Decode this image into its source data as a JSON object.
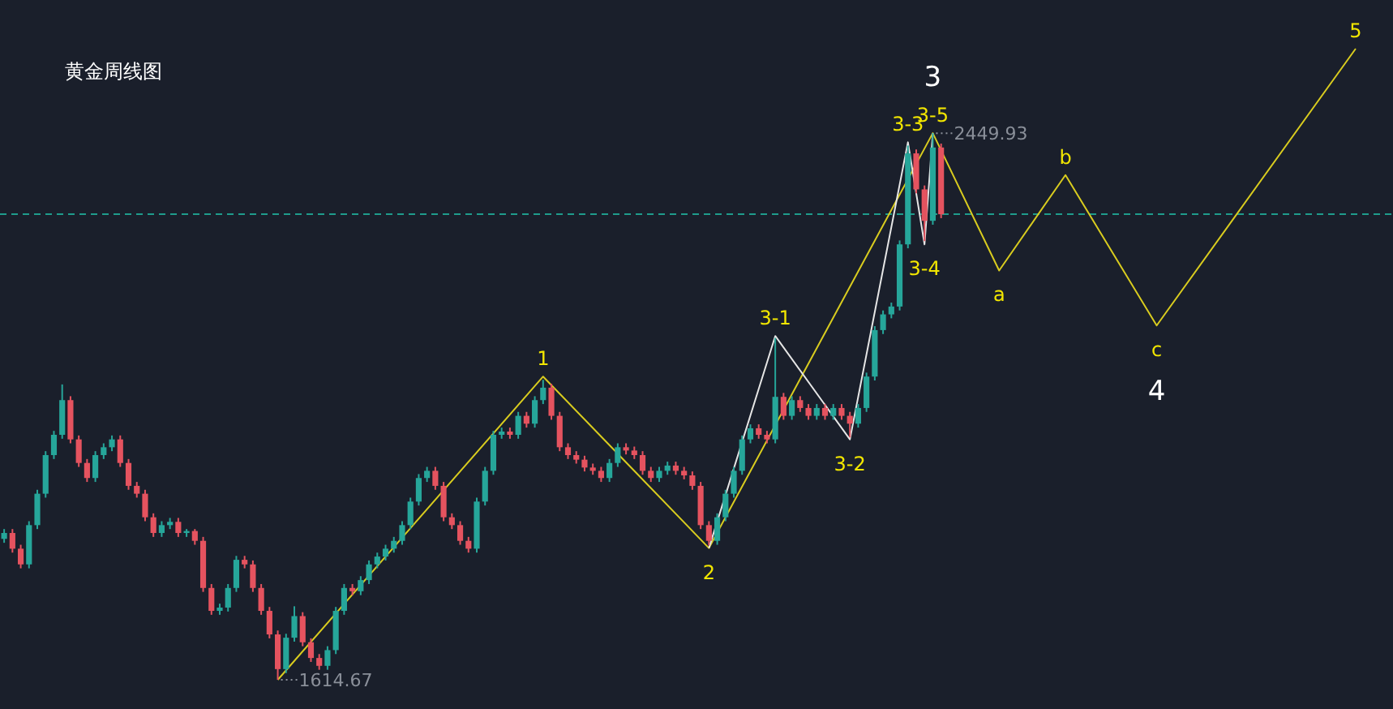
{
  "chart_data": {
    "type": "candlestick",
    "title": "黄金周线图",
    "grid": false,
    "categories": [
      null,
      null,
      null,
      null,
      null,
      null,
      null,
      null,
      null,
      null,
      null,
      null,
      null,
      null,
      null,
      null,
      null,
      null,
      null,
      null,
      null,
      null,
      null,
      null,
      null,
      null,
      null,
      null,
      null,
      null,
      null,
      null,
      null,
      null,
      null,
      null,
      null,
      null,
      null,
      null,
      null,
      null,
      null,
      null,
      null,
      null,
      null,
      null,
      null,
      null,
      null,
      null,
      null,
      null,
      null,
      null,
      null,
      null,
      null,
      null,
      null,
      null,
      null,
      null,
      null,
      null,
      null,
      null,
      null,
      null,
      null,
      null,
      null,
      null,
      null,
      null,
      null,
      null,
      null,
      null,
      null,
      null,
      null,
      null,
      null,
      null,
      null,
      null,
      null,
      null,
      null,
      null,
      null,
      null,
      null,
      null,
      null,
      null,
      null,
      null,
      null,
      null,
      null,
      null,
      null,
      null,
      null,
      null,
      null,
      null,
      null,
      null,
      null,
      null,
      null,
      null,
      null,
      null,
      null,
      null,
      null,
      null,
      null,
      null,
      null,
      null,
      null,
      null,
      null,
      null,
      null,
      null,
      null,
      null,
      null,
      null,
      null,
      null,
      null,
      null,
      null,
      null,
      null,
      null,
      null,
      null,
      null,
      null,
      null,
      null,
      null,
      null,
      null,
      null,
      null,
      null,
      null,
      null,
      null,
      null,
      null,
      null,
      null,
      null,
      null,
      null,
      null,
      null
    ],
    "ohlc": [
      [
        1830,
        1845,
        1824,
        1839
      ],
      [
        1839,
        1845,
        1809,
        1815
      ],
      [
        1815,
        1821,
        1785,
        1791
      ],
      [
        1791,
        1857,
        1785,
        1851
      ],
      [
        1851,
        1905,
        1845,
        1899
      ],
      [
        1899,
        1964,
        1893,
        1958
      ],
      [
        1958,
        1995,
        1952,
        1989
      ],
      [
        1989,
        2066,
        1983,
        2042
      ],
      [
        2042,
        2048,
        1976,
        1982
      ],
      [
        1982,
        1988,
        1940,
        1946
      ],
      [
        1946,
        1952,
        1917,
        1923
      ],
      [
        1923,
        1964,
        1917,
        1958
      ],
      [
        1958,
        1976,
        1952,
        1970
      ],
      [
        1970,
        1988,
        1964,
        1982
      ],
      [
        1982,
        1988,
        1940,
        1946
      ],
      [
        1946,
        1952,
        1905,
        1911
      ],
      [
        1911,
        1917,
        1893,
        1899
      ],
      [
        1899,
        1905,
        1857,
        1863
      ],
      [
        1863,
        1869,
        1833,
        1839
      ],
      [
        1839,
        1857,
        1833,
        1851
      ],
      [
        1851,
        1862,
        1845,
        1856
      ],
      [
        1856,
        1862,
        1833,
        1839
      ],
      [
        1839,
        1845,
        1833,
        1842
      ],
      [
        1842,
        1845,
        1821,
        1827
      ],
      [
        1827,
        1833,
        1749,
        1755
      ],
      [
        1755,
        1761,
        1714,
        1720
      ],
      [
        1720,
        1731,
        1714,
        1725
      ],
      [
        1725,
        1761,
        1719,
        1755
      ],
      [
        1755,
        1804,
        1749,
        1798
      ],
      [
        1798,
        1804,
        1785,
        1791
      ],
      [
        1791,
        1797,
        1749,
        1755
      ],
      [
        1755,
        1761,
        1714,
        1720
      ],
      [
        1720,
        1726,
        1678,
        1684
      ],
      [
        1684,
        1690,
        1614.67,
        1631
      ],
      [
        1631,
        1685,
        1625,
        1679
      ],
      [
        1679,
        1727,
        1673,
        1712
      ],
      [
        1712,
        1718,
        1666,
        1672
      ],
      [
        1672,
        1678,
        1642,
        1648
      ],
      [
        1648,
        1654,
        1630,
        1636
      ],
      [
        1636,
        1666,
        1630,
        1660
      ],
      [
        1660,
        1726,
        1654,
        1720
      ],
      [
        1720,
        1761,
        1714,
        1755
      ],
      [
        1755,
        1761,
        1744,
        1750
      ],
      [
        1750,
        1773,
        1744,
        1767
      ],
      [
        1767,
        1797,
        1761,
        1791
      ],
      [
        1791,
        1809,
        1785,
        1803
      ],
      [
        1803,
        1821,
        1797,
        1815
      ],
      [
        1815,
        1833,
        1809,
        1827
      ],
      [
        1827,
        1857,
        1821,
        1851
      ],
      [
        1851,
        1893,
        1845,
        1887
      ],
      [
        1887,
        1929,
        1881,
        1923
      ],
      [
        1923,
        1940,
        1917,
        1934
      ],
      [
        1934,
        1940,
        1905,
        1911
      ],
      [
        1911,
        1917,
        1857,
        1863
      ],
      [
        1863,
        1869,
        1845,
        1851
      ],
      [
        1851,
        1857,
        1821,
        1827
      ],
      [
        1827,
        1833,
        1809,
        1815
      ],
      [
        1815,
        1893,
        1809,
        1887
      ],
      [
        1887,
        1940,
        1881,
        1934
      ],
      [
        1934,
        1995,
        1928,
        1989
      ],
      [
        1989,
        2000,
        1983,
        1994
      ],
      [
        1994,
        2000,
        1983,
        1989
      ],
      [
        1989,
        2024,
        1983,
        2018
      ],
      [
        2018,
        2024,
        2000,
        2006
      ],
      [
        2006,
        2048,
        2000,
        2042
      ],
      [
        2042,
        2073,
        2036,
        2061
      ],
      [
        2061,
        2067,
        2012,
        2018
      ],
      [
        2018,
        2024,
        1964,
        1970
      ],
      [
        1970,
        1976,
        1952,
        1958
      ],
      [
        1958,
        1964,
        1945,
        1951
      ],
      [
        1951,
        1957,
        1933,
        1939
      ],
      [
        1939,
        1945,
        1928,
        1934
      ],
      [
        1934,
        1940,
        1917,
        1923
      ],
      [
        1923,
        1952,
        1917,
        1946
      ],
      [
        1946,
        1976,
        1940,
        1970
      ],
      [
        1970,
        1976,
        1959,
        1965
      ],
      [
        1965,
        1971,
        1952,
        1958
      ],
      [
        1958,
        1964,
        1928,
        1934
      ],
      [
        1934,
        1940,
        1917,
        1923
      ],
      [
        1923,
        1940,
        1917,
        1934
      ],
      [
        1934,
        1948,
        1928,
        1942
      ],
      [
        1942,
        1948,
        1928,
        1934
      ],
      [
        1934,
        1940,
        1921,
        1927
      ],
      [
        1927,
        1933,
        1905,
        1911
      ],
      [
        1911,
        1917,
        1845,
        1851
      ],
      [
        1851,
        1857,
        1820,
        1827
      ],
      [
        1827,
        1869,
        1821,
        1863
      ],
      [
        1863,
        1905,
        1857,
        1899
      ],
      [
        1899,
        1940,
        1893,
        1934
      ],
      [
        1934,
        1988,
        1928,
        1982
      ],
      [
        1982,
        2005,
        1976,
        1999
      ],
      [
        1999,
        2005,
        1983,
        1989
      ],
      [
        1989,
        1995,
        1976,
        1982
      ],
      [
        1982,
        2137,
        1976,
        2047
      ],
      [
        2047,
        2053,
        2012,
        2018
      ],
      [
        2018,
        2048,
        2012,
        2042
      ],
      [
        2042,
        2048,
        2024,
        2030
      ],
      [
        2030,
        2036,
        2012,
        2018
      ],
      [
        2018,
        2036,
        2012,
        2030
      ],
      [
        2030,
        2036,
        2012,
        2018
      ],
      [
        2018,
        2036,
        2012,
        2030
      ],
      [
        2030,
        2036,
        2012,
        2018
      ],
      [
        2018,
        2024,
        1985,
        2006
      ],
      [
        2006,
        2036,
        2000,
        2030
      ],
      [
        2030,
        2084,
        2024,
        2078
      ],
      [
        2078,
        2155,
        2072,
        2149
      ],
      [
        2149,
        2179,
        2143,
        2173
      ],
      [
        2173,
        2191,
        2167,
        2185
      ],
      [
        2185,
        2286,
        2179,
        2280
      ],
      [
        2280,
        2431,
        2274,
        2419
      ],
      [
        2419,
        2425,
        2358,
        2364
      ],
      [
        2364,
        2370,
        2285,
        2316
      ],
      [
        2316,
        2449.93,
        2310,
        2428
      ],
      [
        2428,
        2434,
        2320,
        2326
      ],
      null,
      null,
      null,
      null,
      null,
      null,
      null,
      null,
      null,
      null,
      null,
      null,
      null,
      null,
      null,
      null,
      null,
      null,
      null,
      null,
      null,
      null,
      null,
      null,
      null,
      null,
      null,
      null,
      null,
      null,
      null,
      null,
      null,
      null,
      null,
      null,
      null,
      null,
      null,
      null,
      null,
      null,
      null,
      null,
      null,
      null,
      null,
      null,
      null,
      null,
      null,
      null,
      null,
      null
    ],
    "series": [
      {
        "type": "line",
        "color": "#d9cc1f",
        "values": [
          null,
          null,
          null,
          null,
          null,
          null,
          null,
          null,
          null,
          null,
          null,
          null,
          null,
          null,
          null,
          null,
          null,
          null,
          null,
          null,
          null,
          null,
          null,
          null,
          null,
          null,
          null,
          null,
          null,
          null,
          null,
          null,
          null,
          1614.67,
          null,
          null,
          null,
          null,
          null,
          null,
          null,
          null,
          null,
          null,
          null,
          null,
          null,
          null,
          null,
          null,
          null,
          null,
          null,
          null,
          null,
          null,
          null,
          null,
          null,
          null,
          null,
          null,
          null,
          null,
          null,
          2078,
          null,
          null,
          null,
          null,
          null,
          null,
          null,
          null,
          null,
          null,
          null,
          null,
          null,
          null,
          null,
          null,
          null,
          null,
          null,
          1816,
          null,
          null,
          null,
          null,
          null,
          null,
          null,
          null,
          null,
          null,
          null,
          null,
          null,
          null,
          null,
          null,
          null,
          null,
          null,
          null,
          null,
          null,
          null,
          null,
          null,
          null,
          2449.93,
          null,
          null,
          null,
          null,
          null,
          null,
          null,
          2240,
          null,
          null,
          null,
          null,
          null,
          null,
          null,
          2386,
          null,
          null,
          null,
          null,
          null,
          null,
          null,
          null,
          null,
          null,
          2156,
          null,
          null,
          null,
          null,
          null,
          null,
          null,
          null,
          null,
          null,
          null,
          null,
          null,
          null,
          null,
          null,
          null,
          null,
          null,
          null,
          null,
          null,
          null,
          2579,
          null,
          null,
          null,
          null
        ]
      },
      {
        "type": "line",
        "color": "#e6e6e6",
        "values": [
          null,
          null,
          null,
          null,
          null,
          null,
          null,
          null,
          null,
          null,
          null,
          null,
          null,
          null,
          null,
          null,
          null,
          null,
          null,
          null,
          null,
          null,
          null,
          null,
          null,
          null,
          null,
          null,
          null,
          null,
          null,
          null,
          null,
          null,
          null,
          null,
          null,
          null,
          null,
          null,
          null,
          null,
          null,
          null,
          null,
          null,
          null,
          null,
          null,
          null,
          null,
          null,
          null,
          null,
          null,
          null,
          null,
          null,
          null,
          null,
          null,
          null,
          null,
          null,
          null,
          null,
          null,
          null,
          null,
          null,
          null,
          null,
          null,
          null,
          null,
          null,
          null,
          null,
          null,
          null,
          null,
          null,
          null,
          null,
          null,
          1816,
          null,
          null,
          null,
          null,
          null,
          null,
          null,
          2140,
          null,
          null,
          null,
          null,
          null,
          null,
          null,
          null,
          1982,
          null,
          null,
          null,
          null,
          null,
          null,
          2436,
          null,
          2280,
          2449.93,
          null,
          null,
          null,
          null,
          null,
          null,
          null,
          null,
          null,
          null,
          null,
          null,
          null,
          null,
          null,
          null,
          null,
          null,
          null,
          null,
          null,
          null,
          null,
          null,
          null,
          null,
          null,
          null,
          null,
          null,
          null,
          null,
          null,
          null,
          null,
          null,
          null,
          null,
          null,
          null,
          null,
          null,
          null,
          null,
          null,
          null,
          null,
          null,
          null,
          null,
          null,
          null,
          null,
          null,
          null
        ]
      }
    ],
    "ref_lines": [
      {
        "axis": "y",
        "value": 2326,
        "color": "#1f9c8c",
        "line_style": "dashed"
      }
    ],
    "annotations": [
      "1614.67",
      "2449.93",
      {
        "text": "3-1",
        "y": 2140
      },
      {
        "text": "3-2",
        "y": 1982
      },
      {
        "text": "3-3",
        "y": 2436
      },
      {
        "text": "3-4",
        "y": 2280
      },
      {
        "text": "3-5",
        "y": 2449.93
      },
      {
        "text": "a",
        "y": 2240
      },
      {
        "text": "b",
        "y": 2386
      },
      {
        "text": "c",
        "y": 2156
      },
      {
        "text": "1",
        "y": 2078
      },
      {
        "text": "2",
        "y": 1816
      },
      {
        "text": "3",
        "y": 2449.93
      },
      {
        "text": "4",
        "y": 2156
      },
      {
        "text": "5",
        "y": 2579
      }
    ]
  }
}
